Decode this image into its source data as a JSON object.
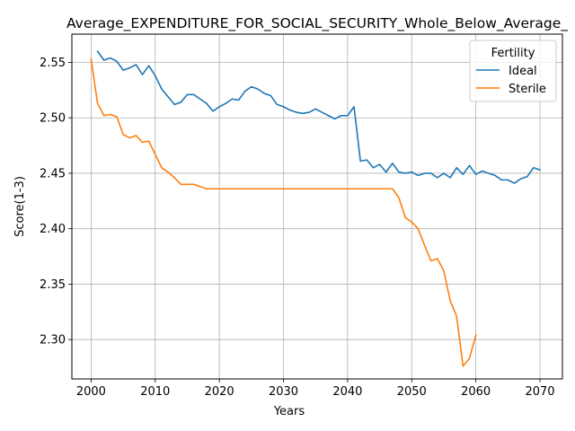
{
  "chart_data": {
    "type": "line",
    "title": "Average_EXPENDITURE_FOR_SOCIAL_SECURITY_Whole_Below_Average_",
    "xlabel": "Years",
    "ylabel": "Score(1-3)",
    "xlim": [
      1997,
      2073.5
    ],
    "ylim": [
      2.2645,
      2.5755
    ],
    "xticks": [
      2000,
      2010,
      2020,
      2030,
      2040,
      2050,
      2060,
      2070
    ],
    "yticks": [
      2.3,
      2.35,
      2.4,
      2.45,
      2.5,
      2.55
    ],
    "xtick_labels": [
      "2000",
      "2010",
      "2020",
      "2030",
      "2040",
      "2050",
      "2060",
      "2070"
    ],
    "ytick_labels": [
      "2.30",
      "2.35",
      "2.40",
      "2.45",
      "2.50",
      "2.55"
    ],
    "grid": true,
    "legend": {
      "title": "Fertility",
      "position": "top-right"
    },
    "series": [
      {
        "name": "Ideal",
        "color": "#1f77b4",
        "x": [
          2001,
          2002,
          2003,
          2004,
          2005,
          2006,
          2007,
          2008,
          2009,
          2010,
          2011,
          2012,
          2013,
          2014,
          2015,
          2016,
          2017,
          2018,
          2019,
          2020,
          2021,
          2022,
          2023,
          2024,
          2025,
          2026,
          2027,
          2028,
          2029,
          2030,
          2031,
          2032,
          2033,
          2034,
          2035,
          2036,
          2037,
          2038,
          2039,
          2040,
          2041,
          2042,
          2043,
          2044,
          2045,
          2046,
          2047,
          2048,
          2049,
          2050,
          2051,
          2052,
          2053,
          2054,
          2055,
          2056,
          2057,
          2058,
          2059,
          2060,
          2061,
          2062,
          2063,
          2064,
          2065,
          2066,
          2067,
          2068,
          2069,
          2070
        ],
        "y": [
          2.56,
          2.552,
          2.554,
          2.551,
          2.543,
          2.545,
          2.548,
          2.539,
          2.547,
          2.538,
          2.526,
          2.519,
          2.512,
          2.514,
          2.521,
          2.521,
          2.517,
          2.513,
          2.506,
          2.51,
          2.513,
          2.517,
          2.516,
          2.524,
          2.528,
          2.526,
          2.522,
          2.52,
          2.512,
          2.51,
          2.507,
          2.505,
          2.504,
          2.505,
          2.508,
          2.505,
          2.502,
          2.499,
          2.502,
          2.502,
          2.51,
          2.461,
          2.462,
          2.455,
          2.458,
          2.451,
          2.459,
          2.451,
          2.45,
          2.451,
          2.448,
          2.45,
          2.45,
          2.446,
          2.45,
          2.446,
          2.455,
          2.449,
          2.457,
          2.449,
          2.452,
          2.45,
          2.448,
          2.444,
          2.444,
          2.441,
          2.445,
          2.447,
          2.455,
          2.453
        ]
      },
      {
        "name": "Sterile",
        "color": "#ff7f0e",
        "x": [
          2000,
          2001,
          2002,
          2003,
          2004,
          2005,
          2006,
          2007,
          2008,
          2009,
          2010,
          2011,
          2012,
          2013,
          2014,
          2015,
          2016,
          2017,
          2018,
          2019,
          2020,
          2021,
          2022,
          2023,
          2024,
          2025,
          2026,
          2027,
          2028,
          2029,
          2030,
          2031,
          2032,
          2033,
          2034,
          2035,
          2036,
          2037,
          2038,
          2039,
          2040,
          2041,
          2042,
          2043,
          2044,
          2045,
          2046,
          2047,
          2048,
          2049,
          2050,
          2051,
          2052,
          2053,
          2054,
          2055,
          2056,
          2057,
          2058,
          2059,
          2060
        ],
        "y": [
          2.553,
          2.513,
          2.502,
          2.503,
          2.501,
          2.485,
          2.482,
          2.484,
          2.478,
          2.479,
          2.467,
          2.455,
          2.451,
          2.446,
          2.44,
          2.44,
          2.44,
          2.438,
          2.436,
          2.436,
          2.436,
          2.436,
          2.436,
          2.436,
          2.436,
          2.436,
          2.436,
          2.436,
          2.436,
          2.436,
          2.436,
          2.436,
          2.436,
          2.436,
          2.436,
          2.436,
          2.436,
          2.436,
          2.436,
          2.436,
          2.436,
          2.436,
          2.436,
          2.436,
          2.436,
          2.436,
          2.436,
          2.436,
          2.428,
          2.41,
          2.406,
          2.4,
          2.385,
          2.371,
          2.373,
          2.362,
          2.335,
          2.321,
          2.276,
          2.283,
          2.304
        ]
      }
    ]
  }
}
